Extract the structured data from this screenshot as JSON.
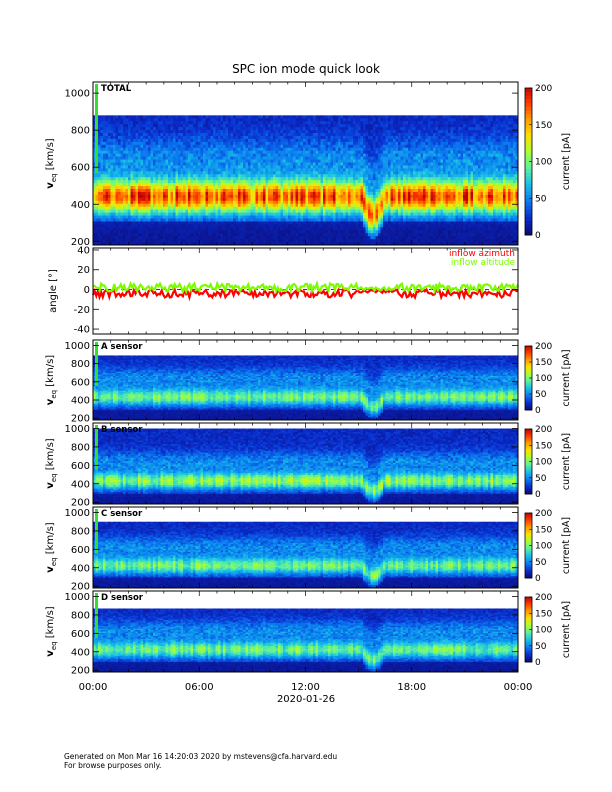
{
  "title": "SPC ion mode quick look",
  "footer": {
    "line1": "Generated on Mon Mar 16 14:20:03 2020 by mstevens@cfa.harvard.edu",
    "line2": "For browse purposes only."
  },
  "colors": {
    "azimuth": "#ff0000",
    "altitude": "#7cfc00",
    "colormap": [
      "#0b0b7a",
      "#0a2fd0",
      "#0a7df0",
      "#18c0e8",
      "#5cf0a0",
      "#a8ff30",
      "#ffe000",
      "#ff9a00",
      "#ff3a00",
      "#c00000"
    ]
  },
  "chart_data": [
    {
      "type": "heatmap",
      "name": "TOTAL",
      "ylabel_main": "v",
      "ylabel_sub": "eq",
      "ylabel_units": "[km/s]",
      "ylim": [
        180,
        1060
      ],
      "yticks": [
        200,
        400,
        600,
        800,
        1000
      ],
      "colorbar": {
        "label": "current [pA]",
        "range": [
          0,
          200
        ],
        "ticks": [
          0,
          50,
          100,
          150,
          200
        ]
      },
      "profile": {
        "vmax": 880,
        "core": 440,
        "peak_pA": 110,
        "dip_start": "15:10",
        "dip_end": "17:00",
        "dip_core": 340
      }
    },
    {
      "type": "line",
      "name": "angle",
      "ylabel": "angle [°]",
      "ylim": [
        -45,
        42
      ],
      "yticks": [
        -40,
        -20,
        0,
        20,
        40
      ],
      "series": [
        {
          "name": "inflow azimuth",
          "mean": -4,
          "spread": 4
        },
        {
          "name": "inflow altitude",
          "mean": 2,
          "spread": 4
        }
      ]
    },
    {
      "type": "heatmap",
      "name": "A sensor",
      "ylabel_main": "v",
      "ylabel_sub": "eq",
      "ylabel_units": "[km/s]",
      "ylim": [
        180,
        1060
      ],
      "yticks": [
        200,
        400,
        600,
        800,
        1000
      ],
      "colorbar": {
        "label": "current [pA]",
        "range": [
          0,
          200
        ],
        "ticks": [
          0,
          50,
          100,
          150,
          200
        ]
      },
      "profile": {
        "vmax": 890,
        "core": 430,
        "peak_pA": 55,
        "dip_start": "15:10",
        "dip_end": "17:00",
        "dip_core": 320
      }
    },
    {
      "type": "heatmap",
      "name": "B sensor",
      "ylabel_main": "v",
      "ylabel_sub": "eq",
      "ylabel_units": "[km/s]",
      "ylim": [
        180,
        1060
      ],
      "yticks": [
        200,
        400,
        600,
        800,
        1000
      ],
      "colorbar": {
        "label": "current [pA]",
        "range": [
          0,
          200
        ],
        "ticks": [
          0,
          50,
          100,
          150,
          200
        ]
      },
      "profile": {
        "vmax": 1000,
        "core": 430,
        "peak_pA": 60,
        "dip_start": "15:10",
        "dip_end": "17:00",
        "dip_core": 320
      }
    },
    {
      "type": "heatmap",
      "name": "C sensor",
      "ylabel_main": "v",
      "ylabel_sub": "eq",
      "ylabel_units": "[km/s]",
      "ylim": [
        180,
        1060
      ],
      "yticks": [
        200,
        400,
        600,
        800,
        1000
      ],
      "colorbar": {
        "label": "current [pA]",
        "range": [
          0,
          200
        ],
        "ticks": [
          0,
          50,
          100,
          150,
          200
        ]
      },
      "profile": {
        "vmax": 900,
        "core": 420,
        "peak_pA": 55,
        "dip_start": "15:10",
        "dip_end": "17:00",
        "dip_core": 310
      }
    },
    {
      "type": "heatmap",
      "name": "D sensor",
      "ylabel_main": "v",
      "ylabel_sub": "eq",
      "ylabel_units": "[km/s]",
      "ylim": [
        180,
        1060
      ],
      "yticks": [
        200,
        400,
        600,
        800,
        1000
      ],
      "colorbar": {
        "label": "current [pA]",
        "range": [
          0,
          200
        ],
        "ticks": [
          0,
          50,
          100,
          150,
          200
        ]
      },
      "profile": {
        "vmax": 870,
        "core": 420,
        "peak_pA": 55,
        "dip_start": "15:10",
        "dip_end": "17:00",
        "dip_core": 310
      }
    }
  ],
  "x_axis": {
    "range": [
      "00:00",
      "24:00"
    ],
    "ticks": [
      "00:00",
      "06:00",
      "12:00",
      "18:00",
      "00:00"
    ],
    "date_label": "2020-01-26"
  }
}
